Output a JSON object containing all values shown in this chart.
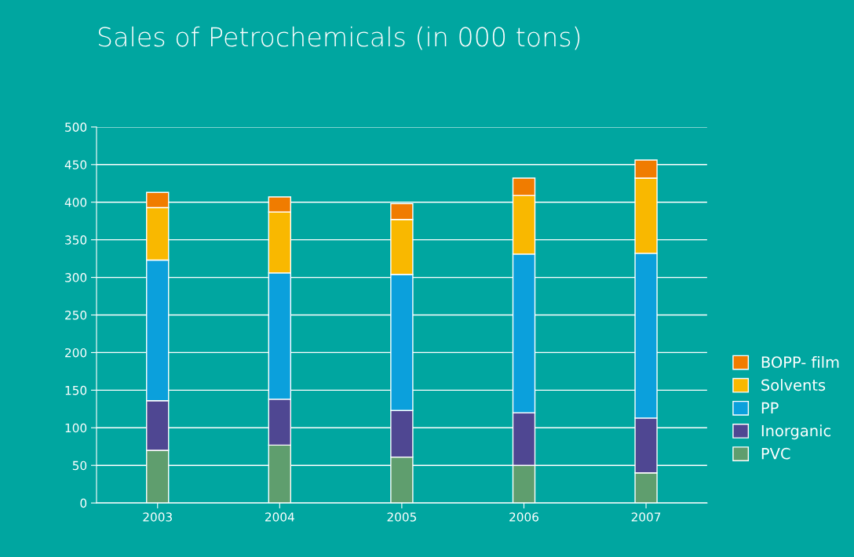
{
  "chart_data": {
    "type": "bar",
    "title": "Sales of Petrochemicals (in 000 tons)",
    "categories": [
      "2003",
      "2004",
      "2005",
      "2006",
      "2007"
    ],
    "stacked": true,
    "series": [
      {
        "name": "PVC",
        "color": "#5f9e6e",
        "values": [
          70,
          77,
          61,
          50,
          40
        ]
      },
      {
        "name": "Inorganic",
        "color": "#4f4792",
        "values": [
          66,
          61,
          62,
          70,
          73
        ]
      },
      {
        "name": "PP",
        "color": "#0ba0dc",
        "values": [
          187,
          168,
          181,
          211,
          219
        ]
      },
      {
        "name": "Solvents",
        "color": "#f9b800",
        "values": [
          70,
          81,
          73,
          78,
          100
        ]
      },
      {
        "name": "BOPP- film",
        "color": "#f07c00",
        "values": [
          20,
          20,
          21,
          23,
          24
        ]
      }
    ],
    "ylim": [
      0,
      500
    ],
    "yticks": [
      0,
      50,
      100,
      150,
      200,
      250,
      300,
      350,
      400,
      450,
      500
    ],
    "grid": "y",
    "legend": "right"
  }
}
